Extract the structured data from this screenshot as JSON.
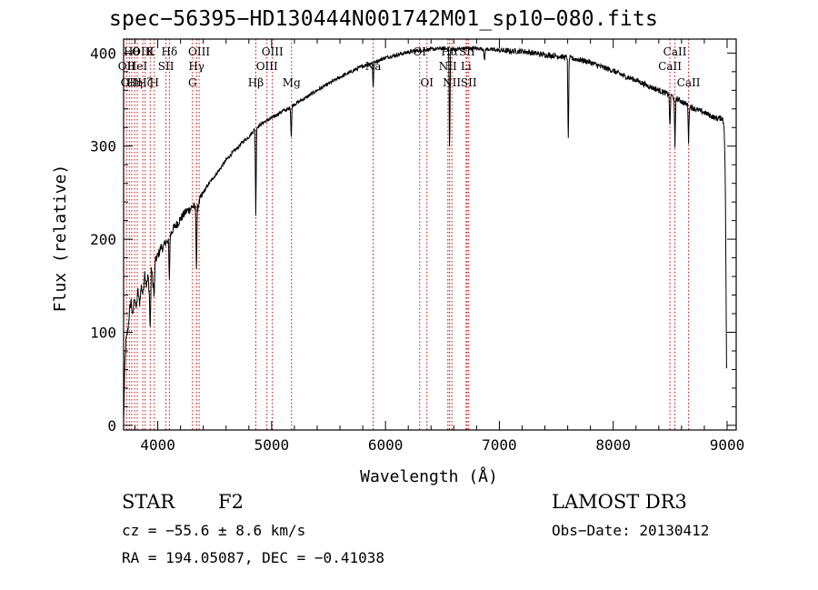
{
  "chart_data": {
    "type": "line",
    "title": "spec−56395−HD130444N001742M01_sp10−080.fits",
    "xlabel": "Wavelength (Å)",
    "ylabel": "Flux (relative)",
    "xlim": [
      3700,
      9080
    ],
    "ylim": [
      -5,
      415
    ],
    "xticks": [
      4000,
      5000,
      6000,
      7000,
      8000,
      9000
    ],
    "yticks": [
      0,
      100,
      200,
      300,
      400
    ],
    "series": [
      {
        "name": "spectrum",
        "points": [
          [
            3700,
            5
          ],
          [
            3710,
            60
          ],
          [
            3720,
            90
          ],
          [
            3735,
            100
          ],
          [
            3750,
            120
          ],
          [
            3765,
            135
          ],
          [
            3780,
            115
          ],
          [
            3795,
            140
          ],
          [
            3810,
            125
          ],
          [
            3825,
            145
          ],
          [
            3840,
            130
          ],
          [
            3855,
            150
          ],
          [
            3870,
            140
          ],
          [
            3885,
            165
          ],
          [
            3900,
            150
          ],
          [
            3915,
            160
          ],
          [
            3930,
            135
          ],
          [
            3945,
            170
          ],
          [
            3960,
            150
          ],
          [
            3975,
            175
          ],
          [
            3990,
            180
          ],
          [
            4010,
            185
          ],
          [
            4030,
            192
          ],
          [
            4050,
            190
          ],
          [
            4070,
            198
          ],
          [
            4090,
            195
          ],
          [
            4110,
            205
          ],
          [
            4130,
            210
          ],
          [
            4160,
            215
          ],
          [
            4190,
            220
          ],
          [
            4220,
            225
          ],
          [
            4250,
            230
          ],
          [
            4280,
            232
          ],
          [
            4310,
            236
          ],
          [
            4340,
            230
          ],
          [
            4370,
            242
          ],
          [
            4400,
            250
          ],
          [
            4450,
            260
          ],
          [
            4500,
            268
          ],
          [
            4550,
            276
          ],
          [
            4600,
            285
          ],
          [
            4650,
            292
          ],
          [
            4700,
            298
          ],
          [
            4750,
            305
          ],
          [
            4800,
            310
          ],
          [
            4850,
            318
          ],
          [
            4900,
            323
          ],
          [
            4950,
            327
          ],
          [
            5000,
            330
          ],
          [
            5050,
            334
          ],
          [
            5100,
            338
          ],
          [
            5150,
            340
          ],
          [
            5200,
            345
          ],
          [
            5300,
            352
          ],
          [
            5400,
            360
          ],
          [
            5500,
            367
          ],
          [
            5600,
            374
          ],
          [
            5700,
            380
          ],
          [
            5800,
            386
          ],
          [
            5900,
            390
          ],
          [
            6000,
            395
          ],
          [
            6100,
            398
          ],
          [
            6200,
            401
          ],
          [
            6300,
            403
          ],
          [
            6400,
            404
          ],
          [
            6500,
            405
          ],
          [
            6600,
            404
          ],
          [
            6700,
            405
          ],
          [
            6800,
            405
          ],
          [
            6900,
            404
          ],
          [
            7000,
            403
          ],
          [
            7100,
            402
          ],
          [
            7200,
            402
          ],
          [
            7300,
            400
          ],
          [
            7400,
            398
          ],
          [
            7500,
            397
          ],
          [
            7600,
            395
          ],
          [
            7700,
            393
          ],
          [
            7800,
            390
          ],
          [
            7900,
            385
          ],
          [
            8000,
            381
          ],
          [
            8100,
            375
          ],
          [
            8200,
            371
          ],
          [
            8300,
            365
          ],
          [
            8400,
            360
          ],
          [
            8500,
            355
          ],
          [
            8600,
            348
          ],
          [
            8700,
            341
          ],
          [
            8800,
            336
          ],
          [
            8900,
            330
          ],
          [
            8960,
            330
          ],
          [
            8975,
            320
          ],
          [
            8985,
            260
          ],
          [
            8995,
            60
          ]
        ],
        "absorption": [
          [
            3934,
            40
          ],
          [
            3969,
            30
          ],
          [
            4102,
            45
          ],
          [
            4340,
            70
          ],
          [
            4861,
            95
          ],
          [
            5172,
            35
          ],
          [
            5892,
            30
          ],
          [
            6563,
            120
          ],
          [
            6870,
            15
          ],
          [
            7605,
            100
          ],
          [
            8498,
            40
          ],
          [
            8542,
            55
          ],
          [
            8662,
            40
          ]
        ]
      }
    ],
    "lines": [
      {
        "wl": 3727,
        "label": "OII",
        "row": 2
      },
      {
        "wl": 3750,
        "label": "OII",
        "row": 3
      },
      {
        "wl": 3771,
        "label": "Hθ",
        "row": 1
      },
      {
        "wl": 3797,
        "label": "Hη",
        "row": 3
      },
      {
        "wl": 3820,
        "label": "HeI",
        "row": 2
      },
      {
        "wl": 3869,
        "label": "OIII",
        "row": 1
      },
      {
        "wl": 3889,
        "label": "Hζ",
        "row": 3
      },
      {
        "wl": 3934,
        "label": "K",
        "row": 1
      },
      {
        "wl": 3969,
        "label": "H",
        "row": 3
      },
      {
        "wl": 4072,
        "label": "SII",
        "row": 2
      },
      {
        "wl": 4102,
        "label": "Hδ",
        "row": 1
      },
      {
        "wl": 4305,
        "label": "G",
        "row": 3
      },
      {
        "wl": 4340,
        "label": "Hγ",
        "row": 2
      },
      {
        "wl": 4363,
        "label": "OIII",
        "row": 1
      },
      {
        "wl": 4861,
        "label": "Hβ",
        "row": 3
      },
      {
        "wl": 4959,
        "label": "OIII",
        "row": 2
      },
      {
        "wl": 5007,
        "label": "OIII",
        "row": 1
      },
      {
        "wl": 5175,
        "label": "Mg",
        "row": 3
      },
      {
        "wl": 5892,
        "label": "Na",
        "row": 2
      },
      {
        "wl": 6300,
        "label": "OI",
        "row": 1
      },
      {
        "wl": 6364,
        "label": "OI",
        "row": 3
      },
      {
        "wl": 6548,
        "label": "NII",
        "row": 2
      },
      {
        "wl": 6563,
        "label": "Hα",
        "row": 1
      },
      {
        "wl": 6583,
        "label": "NII",
        "row": 3
      },
      {
        "wl": 6708,
        "label": "Li",
        "row": 2
      },
      {
        "wl": 6716,
        "label": "SII",
        "row": 1
      },
      {
        "wl": 6731,
        "label": "SII",
        "row": 3
      },
      {
        "wl": 8498,
        "label": "CaII",
        "row": 2
      },
      {
        "wl": 8542,
        "label": "CaII",
        "row": 1
      },
      {
        "wl": 8662,
        "label": "CaII",
        "row": 3
      }
    ],
    "line_color": "#cc0000"
  },
  "info": {
    "class": "STAR",
    "subclass": "F2",
    "survey": "LAMOST DR3",
    "cz": "cz = −55.6 ± 8.6 km/s",
    "obsdate": "Obs−Date: 20130412",
    "radec": "RA = 194.05087, DEC =  −0.41038"
  }
}
